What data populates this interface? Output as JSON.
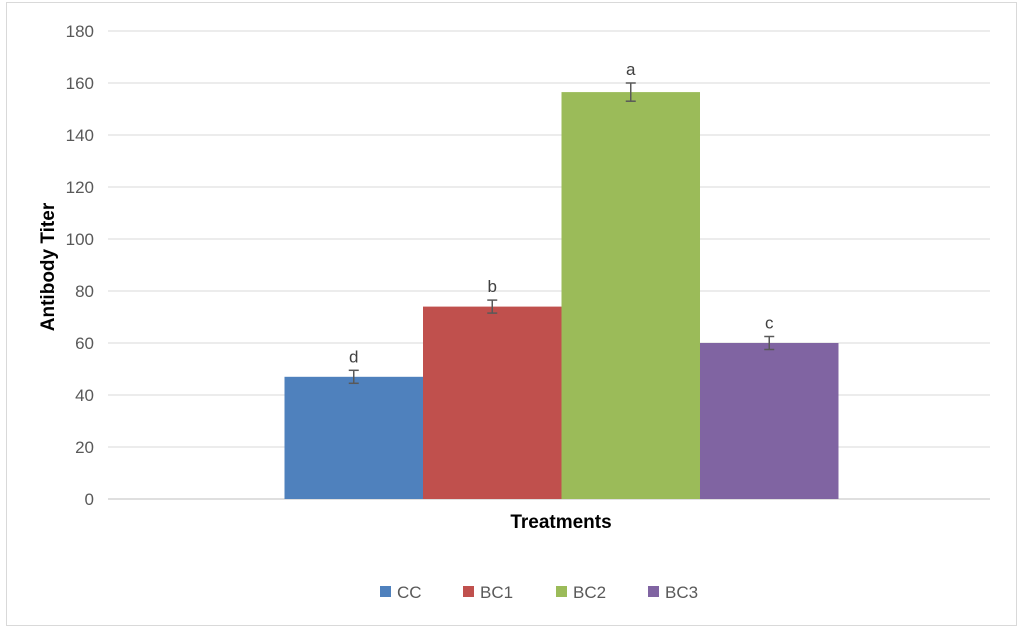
{
  "chart_data": {
    "type": "bar",
    "title": "",
    "xlabel": "Treatments",
    "ylabel": "Antibody Titer",
    "ylim": [
      0,
      180
    ],
    "yticks": [
      "0",
      "20",
      "40",
      "60",
      "80",
      "100",
      "120",
      "140",
      "160",
      "180"
    ],
    "grid": true,
    "legend_position": "bottom",
    "series": [
      {
        "name": "CC",
        "value": 47,
        "error": 2.5,
        "label": "d",
        "color": "#4f81bd"
      },
      {
        "name": "BC1",
        "value": 74,
        "error": 2.5,
        "label": "b",
        "color": "#c0504d"
      },
      {
        "name": "BC2",
        "value": 156.5,
        "error": 3.5,
        "label": "a",
        "color": "#9bbb59"
      },
      {
        "name": "BC3",
        "value": 60,
        "error": 2.5,
        "label": "c",
        "color": "#8064a2"
      }
    ]
  }
}
